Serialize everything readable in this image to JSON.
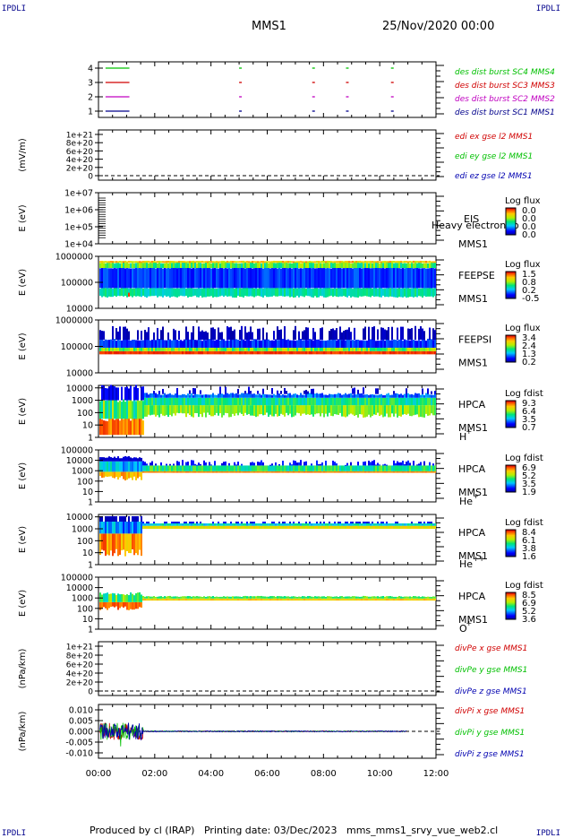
{
  "header": {
    "corner_tl": "IPDLI",
    "corner_tr": "IPDLI",
    "corner_bl": "IPDLI",
    "corner_br": "IPDLI",
    "title": "MMS1",
    "date": "25/Nov/2020 00:00"
  },
  "footer": {
    "produced": "Produced by cl (IRAP)",
    "printing": "Printing date: 03/Dec/2023",
    "script": "mms_mms1_srvy_vue_web2.cl"
  },
  "colors": {
    "green": "#00c000",
    "red": "#d00000",
    "magenta": "#c000c0",
    "blue": "#0000b0",
    "navy": "#000080"
  },
  "chart_data": [
    {
      "type": "line",
      "panel": "burst",
      "yticks": [
        "1",
        "2",
        "3",
        "4"
      ],
      "series": [
        {
          "name": "des dist burst SC1 MMS1",
          "level": 1,
          "color": "#00008b",
          "segments": [
            [
              0.25,
              1.1
            ],
            [
              5.0,
              5.05
            ],
            [
              7.6,
              7.65
            ],
            [
              8.8,
              8.85
            ],
            [
              10.4,
              10.45
            ]
          ]
        },
        {
          "name": "des dist burst SC2 MMS2",
          "level": 2,
          "color": "#c000c0",
          "segments": [
            [
              0.25,
              1.1
            ],
            [
              5.0,
              5.05
            ],
            [
              7.6,
              7.65
            ],
            [
              8.8,
              8.85
            ],
            [
              10.4,
              10.45
            ]
          ]
        },
        {
          "name": "des dist burst SC3 MMS3",
          "level": 3,
          "color": "#d00000",
          "segments": [
            [
              0.25,
              1.1
            ],
            [
              5.0,
              5.05
            ],
            [
              7.6,
              7.65
            ],
            [
              8.8,
              8.85
            ],
            [
              10.4,
              10.45
            ]
          ]
        },
        {
          "name": "des dist burst SC4 MMS4",
          "level": 4,
          "color": "#00c000",
          "segments": [
            [
              0.25,
              1.1
            ],
            [
              5.0,
              5.05
            ],
            [
              7.6,
              7.65
            ],
            [
              8.8,
              8.85
            ],
            [
              10.4,
              10.45
            ]
          ]
        }
      ]
    },
    {
      "type": "line",
      "panel": "edi",
      "ylabel": "(mV/m)",
      "yticks": [
        "0",
        "2e+20",
        "4e+20",
        "6e+20",
        "8e+20",
        "1e+21"
      ],
      "legend": [
        {
          "name": "edi ex gse l2 MMS1",
          "color": "#d00000"
        },
        {
          "name": "edi ey gse l2 MMS1",
          "color": "#00c000"
        },
        {
          "name": "edi ez gse l2 MMS1",
          "color": "#0000b0"
        }
      ]
    },
    {
      "type": "heatmap",
      "panel": "eis",
      "ylabel": "E (eV)",
      "yticks": [
        "1e+04",
        "1e+05",
        "1e+06",
        "1e+07"
      ],
      "instrument": "EIS",
      "spacecraft": "MMS1",
      "overlay_text": "Heavy electron to",
      "colorbar_title": "Log flux",
      "colorbar_ticks": [
        "0.0",
        "0.0",
        "0.0",
        "0.0"
      ]
    },
    {
      "type": "heatmap",
      "panel": "feepse",
      "ylabel": "E (eV)",
      "yticks": [
        "10000",
        "100000",
        "1000000"
      ],
      "instrument": "FEEPSE",
      "spacecraft": "MMS1",
      "colorbar_title": "Log flux",
      "colorbar_ticks": [
        "1.5",
        "0.8",
        "0.2",
        "-0.5"
      ]
    },
    {
      "type": "heatmap",
      "panel": "feepsi",
      "ylabel": "E (eV)",
      "yticks": [
        "10000",
        "100000",
        "1000000"
      ],
      "instrument": "FEEPSI",
      "spacecraft": "MMS1",
      "colorbar_title": "Log flux",
      "colorbar_ticks": [
        "3.4",
        "2.4",
        "1.3",
        "0.2"
      ]
    },
    {
      "type": "heatmap",
      "panel": "hpca_h",
      "ylabel": "E (eV)",
      "yticks": [
        "1",
        "10",
        "100",
        "1000",
        "10000"
      ],
      "instrument": "HPCA",
      "spacecraft": "MMS1",
      "species": "H",
      "species_sup": "+",
      "colorbar_title": "Log fdist",
      "colorbar_ticks": [
        "9.3",
        "6.4",
        "3.5",
        "0.7"
      ]
    },
    {
      "type": "heatmap",
      "panel": "hpca_he",
      "ylabel": "E (eV)",
      "yticks": [
        "1",
        "10",
        "100",
        "1000",
        "10000",
        "100000"
      ],
      "instrument": "HPCA",
      "spacecraft": "MMS1",
      "species": "He",
      "species_sup": "+",
      "colorbar_title": "Log fdist",
      "colorbar_ticks": [
        "6.9",
        "5.2",
        "3.5",
        "1.9"
      ]
    },
    {
      "type": "heatmap",
      "panel": "hpca_hepp",
      "ylabel": "E (eV)",
      "yticks": [
        "1",
        "10",
        "100",
        "1000",
        "10000"
      ],
      "instrument": "HPCA",
      "spacecraft": "MMS1",
      "species": "He",
      "species_sup": "++",
      "colorbar_title": "Log fdist",
      "colorbar_ticks": [
        "8.4",
        "6.1",
        "3.8",
        "1.6"
      ]
    },
    {
      "type": "heatmap",
      "panel": "hpca_o",
      "ylabel": "E (eV)",
      "yticks": [
        "1",
        "10",
        "100",
        "1000",
        "10000",
        "100000"
      ],
      "instrument": "HPCA",
      "spacecraft": "MMS1",
      "species": "O",
      "species_sup": "+",
      "colorbar_title": "Log fdist",
      "colorbar_ticks": [
        "8.5",
        "6.9",
        "5.2",
        "3.6"
      ]
    },
    {
      "type": "line",
      "panel": "divpe",
      "ylabel": "(nPa/km)",
      "yticks": [
        "0",
        "2e+20",
        "4e+20",
        "6e+20",
        "8e+20",
        "1e+21"
      ],
      "legend": [
        {
          "name": "divPe x gse MMS1",
          "color": "#d00000"
        },
        {
          "name": "divPe y gse MMS1",
          "color": "#00c000"
        },
        {
          "name": "divPe z gse MMS1",
          "color": "#0000b0"
        }
      ]
    },
    {
      "type": "line",
      "panel": "divpi",
      "ylabel": "(nPa/km)",
      "yticks": [
        "-0.010",
        "-0.005",
        "0.000",
        "0.005",
        "0.010"
      ],
      "ylim": [
        -0.0125,
        0.0125
      ],
      "legend": [
        {
          "name": "divPi x gse MMS1",
          "color": "#d00000"
        },
        {
          "name": "divPi y gse MMS1",
          "color": "#00c000"
        },
        {
          "name": "divPi z gse MMS1",
          "color": "#0000b0"
        }
      ]
    }
  ],
  "x_axis": {
    "xlim": [
      0,
      12
    ],
    "ticks": [
      "00:00",
      "02:00",
      "04:00",
      "06:00",
      "08:00",
      "10:00",
      "12:00"
    ]
  }
}
